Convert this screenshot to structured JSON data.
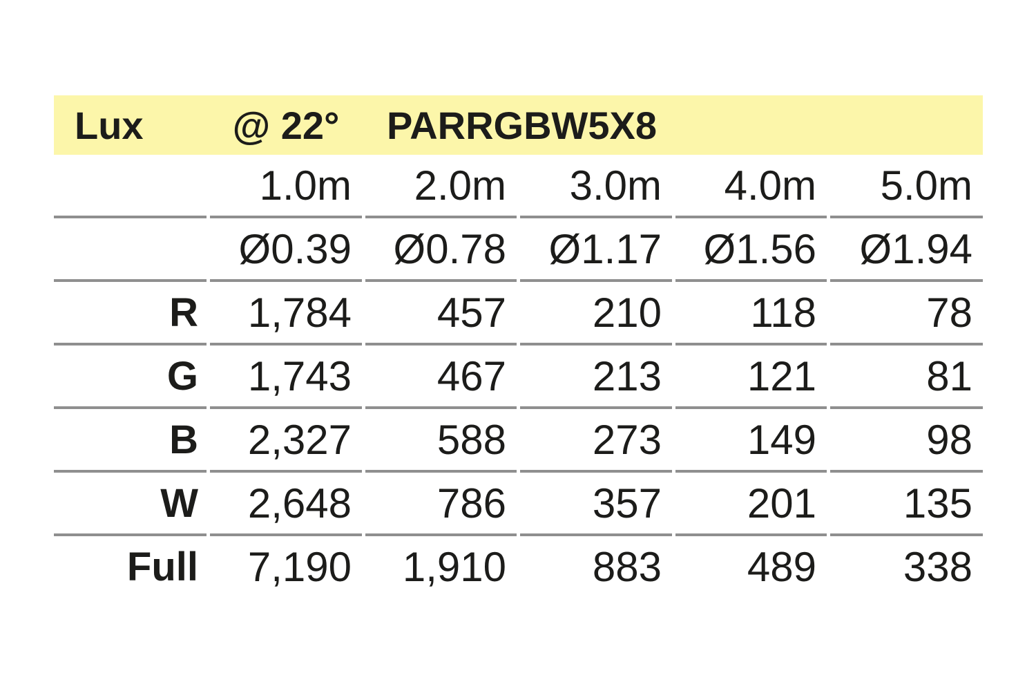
{
  "header": {
    "unit_label": "Lux",
    "beam_angle": "@ 22°",
    "model": "PARRGBW5X8"
  },
  "columns": {
    "distances": [
      "1.0m",
      "2.0m",
      "3.0m",
      "4.0m",
      "5.0m"
    ],
    "beam_diameters": [
      "Ø0.39",
      "Ø0.78",
      "Ø1.17",
      "Ø1.56",
      "Ø1.94"
    ]
  },
  "chart_data": {
    "type": "table",
    "title": "Lux @ 22° PARRGBW5X8",
    "categories": [
      "1.0m",
      "2.0m",
      "3.0m",
      "4.0m",
      "5.0m"
    ],
    "series": [
      {
        "name": "R",
        "values": [
          "1,784",
          "457",
          "210",
          "118",
          "78"
        ]
      },
      {
        "name": "G",
        "values": [
          "1,743",
          "467",
          "213",
          "121",
          "81"
        ]
      },
      {
        "name": "B",
        "values": [
          "2,327",
          "588",
          "273",
          "149",
          "98"
        ]
      },
      {
        "name": "W",
        "values": [
          "2,648",
          "786",
          "357",
          "201",
          "135"
        ]
      },
      {
        "name": "Full",
        "values": [
          "7,190",
          "1,910",
          "883",
          "489",
          "338"
        ]
      }
    ]
  },
  "colors": {
    "header_bg": "#FCF6AA",
    "rule": "#8F8F8F",
    "text": "#1C1C1A"
  }
}
